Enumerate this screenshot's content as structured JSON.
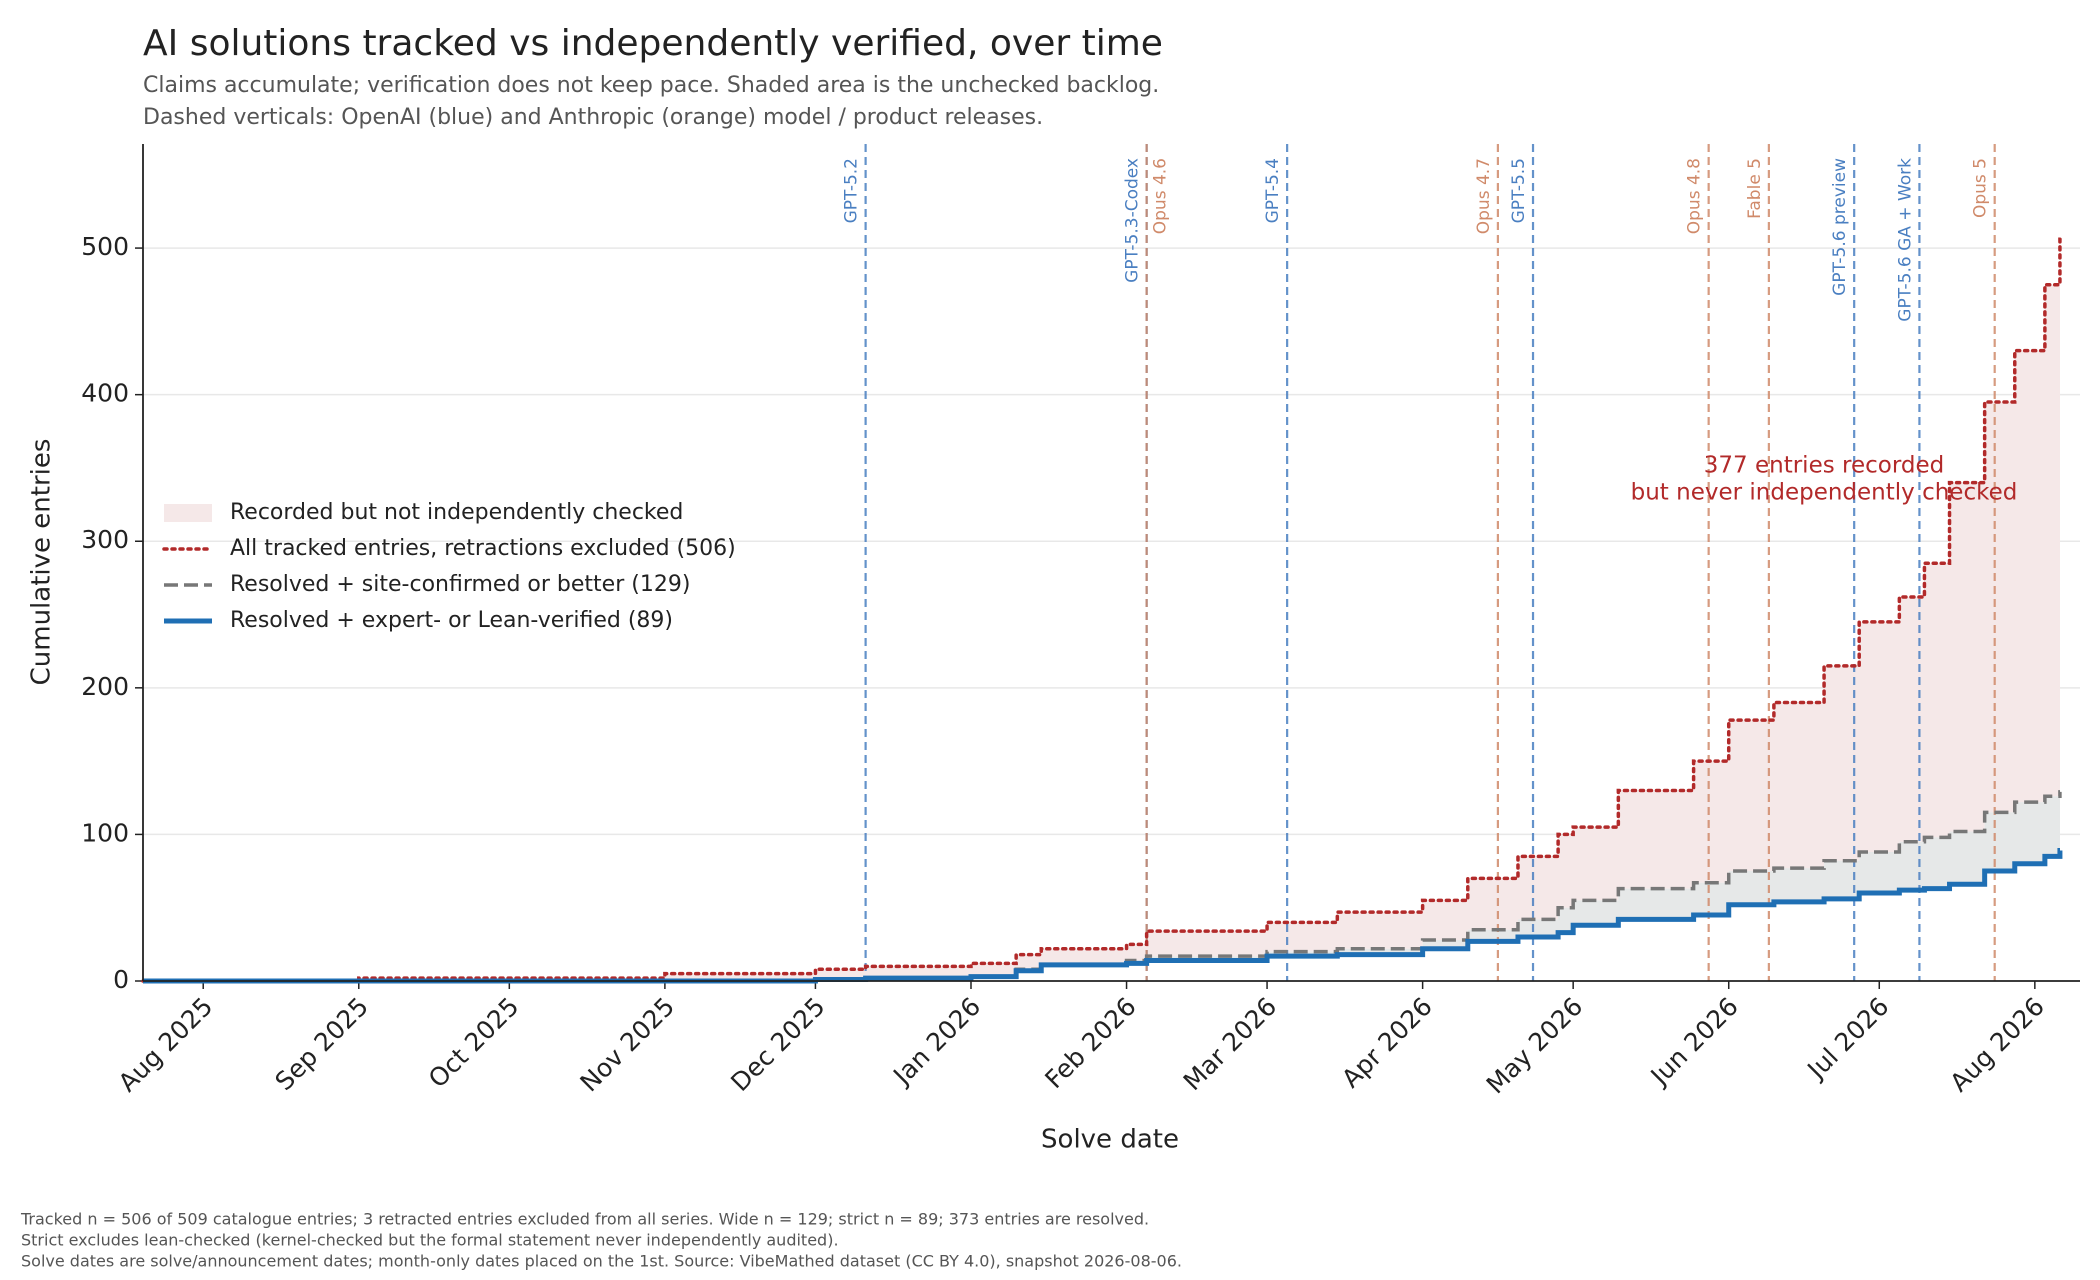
{
  "chart_data": {
    "type": "step",
    "title": "AI solutions tracked vs independently verified, over time",
    "subtitle": [
      "Claims accumulate; verification does not keep pace. Shaded area is the unchecked backlog.",
      "Dashed verticals: OpenAI (blue) and Anthropic (orange) model / product releases."
    ],
    "x_label": "Solve date",
    "y_label": "Cumulative entries",
    "x": [
      "2025-07-20",
      "2025-09-01",
      "2025-11-01",
      "2025-12-01",
      "2025-12-11",
      "2026-01-01",
      "2026-01-10",
      "2026-01-15",
      "2026-02-01",
      "2026-02-05",
      "2026-03-01",
      "2026-03-15",
      "2026-04-01",
      "2026-04-10",
      "2026-04-20",
      "2026-04-28",
      "2026-05-01",
      "2026-05-10",
      "2026-05-25",
      "2026-06-01",
      "2026-06-10",
      "2026-06-20",
      "2026-06-27",
      "2026-07-05",
      "2026-07-10",
      "2026-07-15",
      "2026-07-22",
      "2026-07-28",
      "2026-08-03",
      "2026-08-06"
    ],
    "series": [
      {
        "name": "All tracked entries, retractions excluded (506)",
        "color": "#b22a2a",
        "style": "dotted",
        "values": [
          0,
          2,
          5,
          8,
          10,
          12,
          18,
          22,
          25,
          34,
          40,
          47,
          55,
          70,
          85,
          100,
          105,
          130,
          150,
          178,
          190,
          215,
          245,
          262,
          285,
          340,
          395,
          430,
          475,
          506
        ]
      },
      {
        "name": "Resolved + site-confirmed or better (129)",
        "color": "#777777",
        "style": "dashed",
        "values": [
          0,
          0,
          0,
          1,
          2,
          3,
          8,
          11,
          14,
          17,
          20,
          22,
          28,
          35,
          42,
          50,
          55,
          63,
          67,
          75,
          77,
          82,
          88,
          95,
          98,
          102,
          115,
          122,
          126,
          129
        ]
      },
      {
        "name": "Resolved + expert- or Lean-verified (89)",
        "color": "#1f6fb4",
        "style": "solid",
        "values": [
          0,
          0,
          0,
          1,
          2,
          3,
          7,
          11,
          12,
          14,
          17,
          18,
          22,
          27,
          30,
          33,
          38,
          42,
          45,
          52,
          54,
          56,
          60,
          62,
          63,
          66,
          75,
          80,
          85,
          89
        ]
      }
    ],
    "areas": [
      {
        "name": "Recorded but not independently checked",
        "color": "#f5e8e8"
      },
      {
        "color": "#e6e8e8"
      }
    ],
    "releases": [
      {
        "label": "GPT-5.2",
        "date": "2025-12-11",
        "color": "#4a7fc1"
      },
      {
        "label": "GPT-5.3-Codex",
        "date": "2026-02-05",
        "color": "#4a7fc1"
      },
      {
        "label": "Opus 4.6",
        "date": "2026-02-05",
        "color": "#d08a6a"
      },
      {
        "label": "GPT-5.4",
        "date": "2026-03-05",
        "color": "#4a7fc1"
      },
      {
        "label": "Opus 4.7",
        "date": "2026-04-16",
        "color": "#d08a6a"
      },
      {
        "label": "GPT-5.5",
        "date": "2026-04-23",
        "color": "#4a7fc1"
      },
      {
        "label": "Opus 4.8",
        "date": "2026-05-28",
        "color": "#d08a6a"
      },
      {
        "label": "Fable 5",
        "date": "2026-06-09",
        "color": "#d08a6a"
      },
      {
        "label": "GPT-5.6 preview",
        "date": "2026-06-26",
        "color": "#4a7fc1"
      },
      {
        "label": "GPT-5.6 GA + Work",
        "date": "2026-07-09",
        "color": "#4a7fc1"
      },
      {
        "label": "Opus 5",
        "date": "2026-07-24",
        "color": "#d08a6a"
      }
    ],
    "annotation": [
      "377 entries recorded",
      "but never independently checked"
    ],
    "annotation_color": "#b22a2a",
    "footnotes": [
      "Tracked n = 506 of 509 catalogue entries; 3 retracted entries excluded from all series. Wide n = 129; strict n = 89; 373 entries are resolved.",
      "Strict excludes lean-checked (kernel-checked but the formal statement never independently audited).",
      "Solve dates are solve/announcement dates; month-only dates placed on the 1st. Source: VibeMathed dataset (CC BY 4.0), snapshot 2026-08-06."
    ],
    "xlim": [
      "2025-07-20",
      "2026-08-10"
    ],
    "xticks": [
      {
        "value": "2025-08",
        "label": "Aug 2025"
      },
      {
        "value": "2025-09",
        "label": "Sep 2025"
      },
      {
        "value": "2025-10",
        "label": "Oct 2025"
      },
      {
        "value": "2025-11",
        "label": "Nov 2025"
      },
      {
        "value": "2025-12",
        "label": "Dec 2025"
      },
      {
        "value": "2026-01",
        "label": "Jan 2026"
      },
      {
        "value": "2026-02",
        "label": "Feb 2026"
      },
      {
        "value": "2026-03",
        "label": "Mar 2026"
      },
      {
        "value": "2026-04",
        "label": "Apr 2026"
      },
      {
        "value": "2026-05",
        "label": "May 2026"
      },
      {
        "value": "2026-06",
        "label": "Jun 2026"
      },
      {
        "value": "2026-07",
        "label": "Jul 2026"
      },
      {
        "value": "2026-08",
        "label": "Aug 2026"
      }
    ],
    "ylim": [
      0,
      571
    ],
    "yticks": [
      0,
      100,
      200,
      300,
      400,
      500
    ],
    "grid": true
  }
}
